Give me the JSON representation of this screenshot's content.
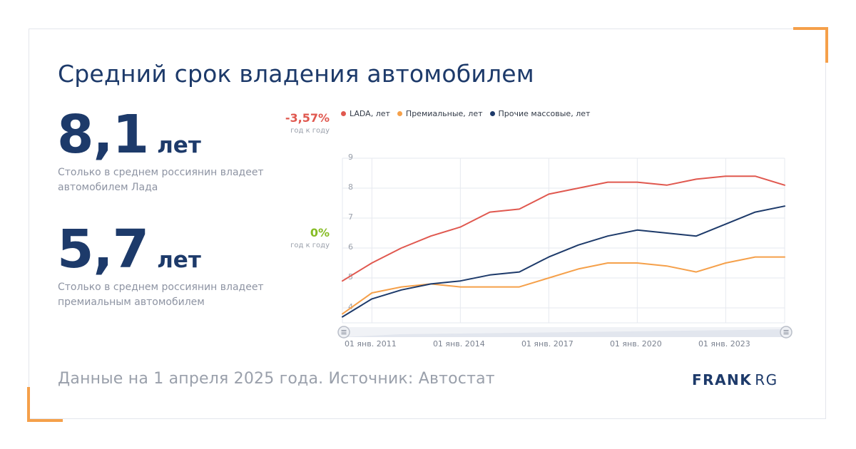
{
  "title": "Средний срок владения автомобилем",
  "metrics": [
    {
      "value": "8,1",
      "unit": "лет",
      "description": "Столько в среднем россиянин владеет автомобилем Лада",
      "change": "-3,57%",
      "change_sub": "год к году",
      "change_color": "#e0584f"
    },
    {
      "value": "5,7",
      "unit": "лет",
      "description": "Столько в среднем россиянин владеет премиальным автомобилем",
      "change": "0%",
      "change_sub": "год к году",
      "change_color": "#86bc25"
    }
  ],
  "footer": "Данные на 1 апреля 2025 года. Источник: Автостат",
  "logo": {
    "bold": "FRANK",
    "light": "RG"
  },
  "colors": {
    "accent": "#f5a04a",
    "primary": "#1d3a6a",
    "lada": "#e0584f",
    "premium": "#f5a04a",
    "mass": "#1d3a6a"
  },
  "chart_data": {
    "type": "line",
    "x": [
      2010,
      2011,
      2012,
      2013,
      2014,
      2015,
      2016,
      2017,
      2018,
      2019,
      2020,
      2021,
      2022,
      2023,
      2024,
      2025
    ],
    "x_tick_labels": [
      {
        "x": 2011,
        "label": "01 янв. 2011"
      },
      {
        "x": 2014,
        "label": "01 янв. 2014"
      },
      {
        "x": 2017,
        "label": "01 янв. 2017"
      },
      {
        "x": 2020,
        "label": "01 янв. 2020"
      },
      {
        "x": 2023,
        "label": "01 янв. 2023"
      }
    ],
    "ylim": [
      3.5,
      9
    ],
    "y_ticks": [
      4,
      5,
      6,
      7,
      8,
      9
    ],
    "grid": true,
    "legend_position": "top",
    "series": [
      {
        "name": "LADA, лет",
        "color": "#e0584f",
        "values": [
          4.9,
          5.5,
          6.0,
          6.4,
          6.7,
          7.2,
          7.3,
          7.8,
          8.0,
          8.2,
          8.2,
          8.1,
          8.3,
          8.4,
          8.4,
          8.1
        ]
      },
      {
        "name": "Премиальные, лет",
        "color": "#f5a04a",
        "values": [
          3.8,
          4.5,
          4.7,
          4.8,
          4.7,
          4.7,
          4.7,
          5.0,
          5.3,
          5.5,
          5.5,
          5.4,
          5.2,
          5.5,
          5.7,
          5.7
        ]
      },
      {
        "name": "Прочие массовые, лет",
        "color": "#1d3a6a",
        "values": [
          3.7,
          4.3,
          4.6,
          4.8,
          4.9,
          5.1,
          5.2,
          5.7,
          6.1,
          6.4,
          6.6,
          6.5,
          6.4,
          6.8,
          7.2,
          7.4
        ]
      }
    ]
  }
}
